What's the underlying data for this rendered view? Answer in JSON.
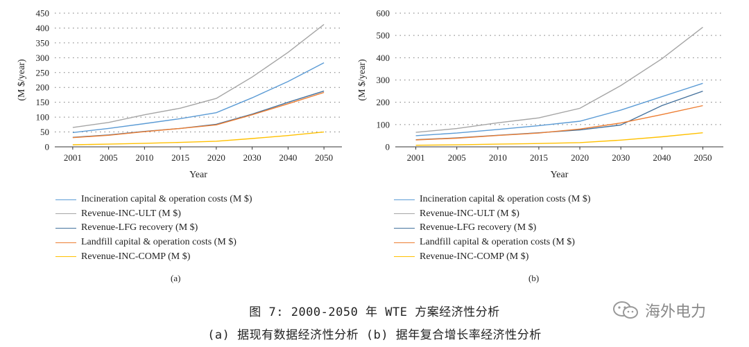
{
  "chart_data": [
    {
      "type": "line",
      "label": "(a)",
      "ylabel": "(M $/year)",
      "xlabel": "Year",
      "categories": [
        "2001",
        "2005",
        "2010",
        "2015",
        "2020",
        "2030",
        "2040",
        "2050"
      ],
      "ylim": [
        0,
        450
      ],
      "yticks": [
        0,
        50,
        100,
        150,
        200,
        250,
        300,
        350,
        400,
        450
      ],
      "grid": "horizontal dotted",
      "series": [
        {
          "name": "Incineration capital & operation costs (M $)",
          "color": "#5b9bd5",
          "values": [
            48,
            62,
            78,
            95,
            115,
            165,
            220,
            283
          ]
        },
        {
          "name": "Revenue-INC-ULT (M $)",
          "color": "#a5a5a5",
          "values": [
            65,
            82,
            108,
            130,
            163,
            235,
            318,
            412
          ]
        },
        {
          "name": "Revenue-LFG recovery (M $)",
          "color": "#44719c",
          "values": [
            32,
            40,
            52,
            62,
            76,
            110,
            150,
            188
          ]
        },
        {
          "name": "Landfill capital & operation costs (M $)",
          "color": "#ed7d31",
          "values": [
            31,
            39,
            51,
            62,
            74,
            108,
            145,
            183
          ]
        },
        {
          "name": "Revenue-INC-COMP (M $)",
          "color": "#ffc000",
          "values": [
            7,
            9,
            12,
            15,
            19,
            28,
            38,
            50
          ]
        }
      ]
    },
    {
      "type": "line",
      "label": "(b)",
      "ylabel": "(M $/year)",
      "xlabel": "Year",
      "categories": [
        "2001",
        "2005",
        "2010",
        "2015",
        "2020",
        "2030",
        "2040",
        "2050"
      ],
      "ylim": [
        0,
        600
      ],
      "yticks": [
        0,
        100,
        200,
        300,
        400,
        500,
        600
      ],
      "grid": "horizontal dotted",
      "series": [
        {
          "name": "Incineration capital & operation costs (M $)",
          "color": "#5b9bd5",
          "values": [
            50,
            62,
            78,
            95,
            115,
            165,
            225,
            285
          ]
        },
        {
          "name": "Revenue-INC-ULT (M $)",
          "color": "#a5a5a5",
          "values": [
            65,
            82,
            108,
            130,
            173,
            275,
            395,
            537
          ]
        },
        {
          "name": "Revenue-LFG recovery (M $)",
          "color": "#44719c",
          "values": [
            32,
            40,
            52,
            63,
            76,
            98,
            185,
            250
          ]
        },
        {
          "name": "Landfill capital & operation costs (M $)",
          "color": "#ed7d31",
          "values": [
            31,
            39,
            51,
            62,
            80,
            107,
            145,
            185
          ]
        },
        {
          "name": "Revenue-INC-COMP (M $)",
          "color": "#ffc000",
          "values": [
            7,
            9,
            12,
            15,
            19,
            30,
            45,
            63
          ]
        }
      ]
    }
  ],
  "legend_a": [
    "Incineration capital & operation costs (M $)",
    "Revenue-INC-ULT (M $)",
    "Revenue-LFG recovery (M $)",
    "Landfill capital & operation costs (M $)",
    "Revenue-INC-COMP (M $)"
  ],
  "legend_b": [
    "Incineration capital & operation costs (M $)",
    "Revenue-INC-ULT (M $)",
    "Revenue-LFG recovery (M $)",
    "Landfill capital & operation costs (M $)",
    "Revenue-INC-COMP (M $)"
  ],
  "caption": {
    "line1": "图 7: 2000-2050 年 WTE 方案经济性分析",
    "line2": "(a) 据现有数据经济性分析 (b) 据年复合增长率经济性分析"
  },
  "watermark": {
    "text": "海外电力",
    "icon": "wechat-icon"
  }
}
